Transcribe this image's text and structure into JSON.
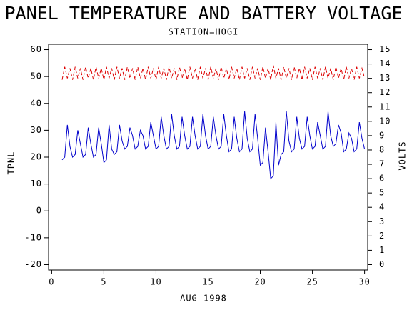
{
  "chart_data": {
    "type": "line",
    "title": "PANEL TEMPERATURE AND BATTERY VOLTAGE",
    "subtitle": "STATION=HOGI",
    "xlabel": "AUG 1998",
    "ylabel": "TPNL",
    "y2label": "VOLTS",
    "xlim": [
      -0.3,
      30.3
    ],
    "xticks": [
      0,
      5,
      10,
      15,
      20,
      25,
      30
    ],
    "ylim": [
      -22,
      62
    ],
    "yticks": [
      -20,
      -10,
      0,
      10,
      20,
      30,
      40,
      50,
      60
    ],
    "y2lim": [
      -0.375,
      15.375
    ],
    "y2ticks": [
      0,
      1,
      2,
      3,
      4,
      5,
      6,
      7,
      8,
      9,
      10,
      11,
      12,
      13,
      14,
      15
    ],
    "x": [
      1,
      1.25,
      1.5,
      1.75,
      2,
      2.25,
      2.5,
      2.75,
      3,
      3.25,
      3.5,
      3.75,
      4,
      4.25,
      4.5,
      4.75,
      5,
      5.25,
      5.5,
      5.75,
      6,
      6.25,
      6.5,
      6.75,
      7,
      7.25,
      7.5,
      7.75,
      8,
      8.25,
      8.5,
      8.75,
      9,
      9.25,
      9.5,
      9.75,
      10,
      10.25,
      10.5,
      10.75,
      11,
      11.25,
      11.5,
      11.75,
      12,
      12.25,
      12.5,
      12.75,
      13,
      13.25,
      13.5,
      13.75,
      14,
      14.25,
      14.5,
      14.75,
      15,
      15.25,
      15.5,
      15.75,
      16,
      16.25,
      16.5,
      16.75,
      17,
      17.25,
      17.5,
      17.75,
      18,
      18.25,
      18.5,
      18.75,
      19,
      19.25,
      19.5,
      19.75,
      20,
      20.25,
      20.5,
      20.75,
      21,
      21.25,
      21.5,
      21.75,
      22,
      22.25,
      22.5,
      22.75,
      23,
      23.25,
      23.5,
      23.75,
      24,
      24.25,
      24.5,
      24.75,
      25,
      25.25,
      25.5,
      25.75,
      26,
      26.25,
      26.5,
      26.75,
      27,
      27.25,
      27.5,
      27.75,
      28,
      28.25,
      28.5,
      28.75,
      29,
      29.25,
      29.5,
      29.75,
      30
    ],
    "series": [
      {
        "color": "#0000cc",
        "dash": false,
        "values": [
          19,
          20,
          32,
          24,
          20,
          21,
          30,
          25,
          20,
          21,
          31,
          25,
          20,
          21,
          31,
          25,
          18,
          19,
          32,
          23,
          21,
          22,
          32,
          26,
          23,
          24,
          31,
          28,
          23,
          24,
          30,
          28,
          23,
          24,
          33,
          28,
          23,
          24,
          35,
          28,
          23,
          24,
          36,
          28,
          23,
          24,
          35,
          28,
          23,
          24,
          35,
          28,
          23,
          24,
          36,
          28,
          23,
          24,
          35,
          28,
          23,
          24,
          36,
          28,
          22,
          23,
          35,
          27,
          22,
          23,
          37,
          27,
          22,
          23,
          36,
          27,
          17,
          18,
          31,
          22,
          12,
          13,
          33,
          17,
          21,
          22,
          37,
          26,
          22,
          23,
          35,
          27,
          23,
          24,
          35,
          28,
          23,
          24,
          33,
          28,
          23,
          24,
          37,
          28,
          24,
          25,
          32,
          29,
          22,
          23,
          29,
          27,
          22,
          23,
          33,
          27,
          23
        ]
      },
      {
        "color": "#dd0000",
        "dash": true,
        "axis": "y2",
        "values": [
          12.9,
          13.8,
          13.0,
          13.7,
          12.9,
          13.8,
          13.0,
          13.7,
          12.9,
          13.8,
          13.0,
          13.7,
          12.9,
          13.8,
          13.0,
          13.7,
          12.9,
          13.8,
          13.0,
          13.7,
          12.9,
          13.8,
          13.0,
          13.7,
          12.9,
          13.8,
          13.0,
          13.7,
          12.9,
          13.8,
          13.0,
          13.7,
          12.9,
          13.8,
          13.0,
          13.7,
          12.9,
          13.8,
          13.0,
          13.7,
          12.9,
          13.8,
          13.0,
          13.7,
          12.9,
          13.8,
          13.0,
          13.7,
          12.9,
          13.8,
          13.0,
          13.7,
          12.9,
          13.8,
          13.0,
          13.7,
          12.9,
          13.8,
          13.0,
          13.7,
          12.9,
          13.8,
          13.0,
          13.7,
          12.9,
          13.8,
          13.0,
          13.7,
          12.9,
          13.8,
          13.0,
          13.7,
          12.9,
          13.8,
          13.0,
          13.7,
          12.9,
          13.8,
          13.0,
          13.7,
          12.9,
          13.9,
          13.0,
          13.7,
          12.9,
          13.8,
          13.0,
          13.7,
          12.9,
          13.8,
          13.0,
          13.7,
          12.9,
          13.8,
          13.0,
          13.7,
          12.9,
          13.8,
          13.0,
          13.7,
          12.9,
          13.8,
          13.0,
          13.7,
          12.9,
          13.8,
          13.0,
          13.7,
          12.9,
          13.8,
          13.0,
          13.7,
          12.9,
          13.8,
          13.0,
          13.7,
          13.0
        ]
      }
    ]
  }
}
